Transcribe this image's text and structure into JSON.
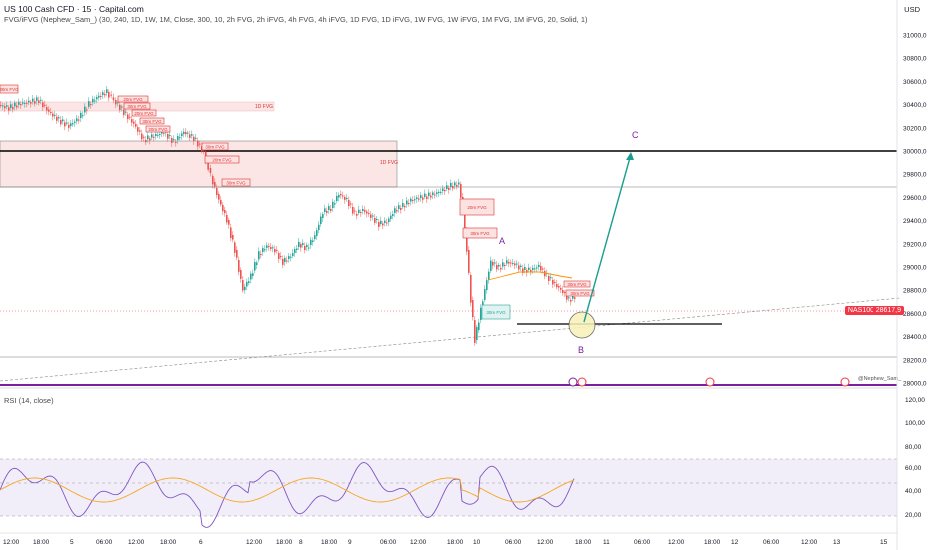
{
  "header": {
    "title": "US 100 Cash CFD · 15 · Capital.com",
    "indicator": "FVG/iFVG (Nephew_Sam_) (30, 240, 1D, 1W, 1M, Close, 300, 10, 2h FVG, 2h iFVG, 4h FVG, 4h iFVG, 1D FVG, 1D iFVG, 1W FVG, 1W iFVG, 1M FVG, 1M iFVG, 20, Solid, 1)",
    "currency": "USD"
  },
  "price_axis": {
    "ticks": [
      "31000,0",
      "30800,0",
      "30600,0",
      "30400,0",
      "30200,0",
      "30000,0",
      "29800,0",
      "29600,0",
      "29400,0",
      "29200,0",
      "29000,0",
      "28800,0",
      "28600,0",
      "28400,0",
      "28200,0",
      "28000,0"
    ],
    "symbol": "NAS100",
    "last_price": "28617,9"
  },
  "rsi": {
    "title": "RSI (14, close)",
    "ticks": [
      "120,00",
      "100,00",
      "80,00",
      "60,00",
      "40,00",
      "20,00"
    ]
  },
  "time_axis": {
    "labels": [
      "12:00",
      "18:00",
      "5",
      "06:00",
      "12:00",
      "18:00",
      "6",
      "12:00",
      "18:00",
      "8",
      "18:00",
      "9",
      "06:00",
      "12:00",
      "18:00",
      "10",
      "06:00",
      "12:00",
      "18:00",
      "11",
      "06:00",
      "12:00",
      "18:00",
      "12",
      "06:00",
      "12:00",
      "13",
      "15"
    ]
  },
  "annotations": {
    "labels": [
      "A",
      "B",
      "C"
    ],
    "fvg_boxes": [
      "30m FVG",
      "20m FVG",
      "1D FVG",
      "1D FVG",
      "30m FVG",
      "20m FVG",
      "30m FVG",
      "20m FVG",
      "30m FVG",
      "30m FVG",
      "20m FVG",
      "30m FVG",
      "30m FVG",
      "30m FVG"
    ],
    "watermark": "@Nephew_Sam_"
  },
  "colors": {
    "up": "#26a69a",
    "down": "#ef5350",
    "rsi_line": "#7e57c2",
    "rsi_ma": "#f5a623",
    "arrow": "#1b9d8f",
    "purple_line": "#7b1fa2"
  }
}
